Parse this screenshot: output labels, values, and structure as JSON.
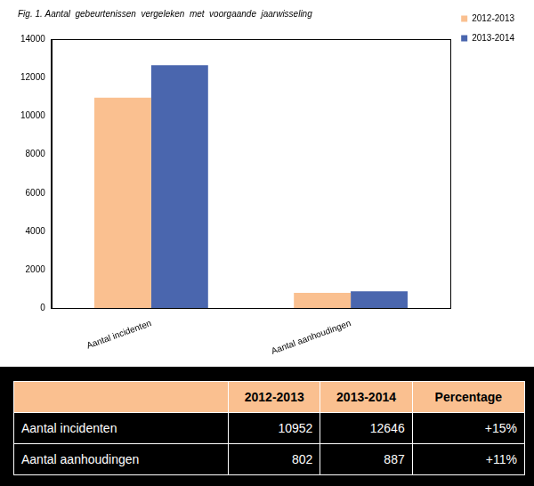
{
  "chart_data": {
    "type": "bar",
    "title": "Fig. 1. Aantal  gebeurtenissen  vergeleken  met  voorgaande  jaarwisseling",
    "categories": [
      "Aantal incidenten",
      "Aantal aanhoudingen"
    ],
    "series": [
      {
        "name": "2012-2013",
        "color": "#fac090",
        "values": [
          10952,
          802
        ]
      },
      {
        "name": "2013-2014",
        "color": "#4a66ae",
        "values": [
          12646,
          887
        ]
      }
    ],
    "ylim": [
      0,
      14000
    ],
    "yticks": [
      0,
      2000,
      4000,
      6000,
      8000,
      10000,
      12000,
      14000
    ],
    "grid": false,
    "legend": "right"
  },
  "table": {
    "header": [
      "2012-2013",
      "2013-2014",
      "Percentage"
    ],
    "rows": [
      [
        "Aantal incidenten",
        10952,
        12646,
        "+15%"
      ],
      [
        "Aantal aanhoudingen",
        802,
        887,
        "+11%"
      ]
    ]
  }
}
